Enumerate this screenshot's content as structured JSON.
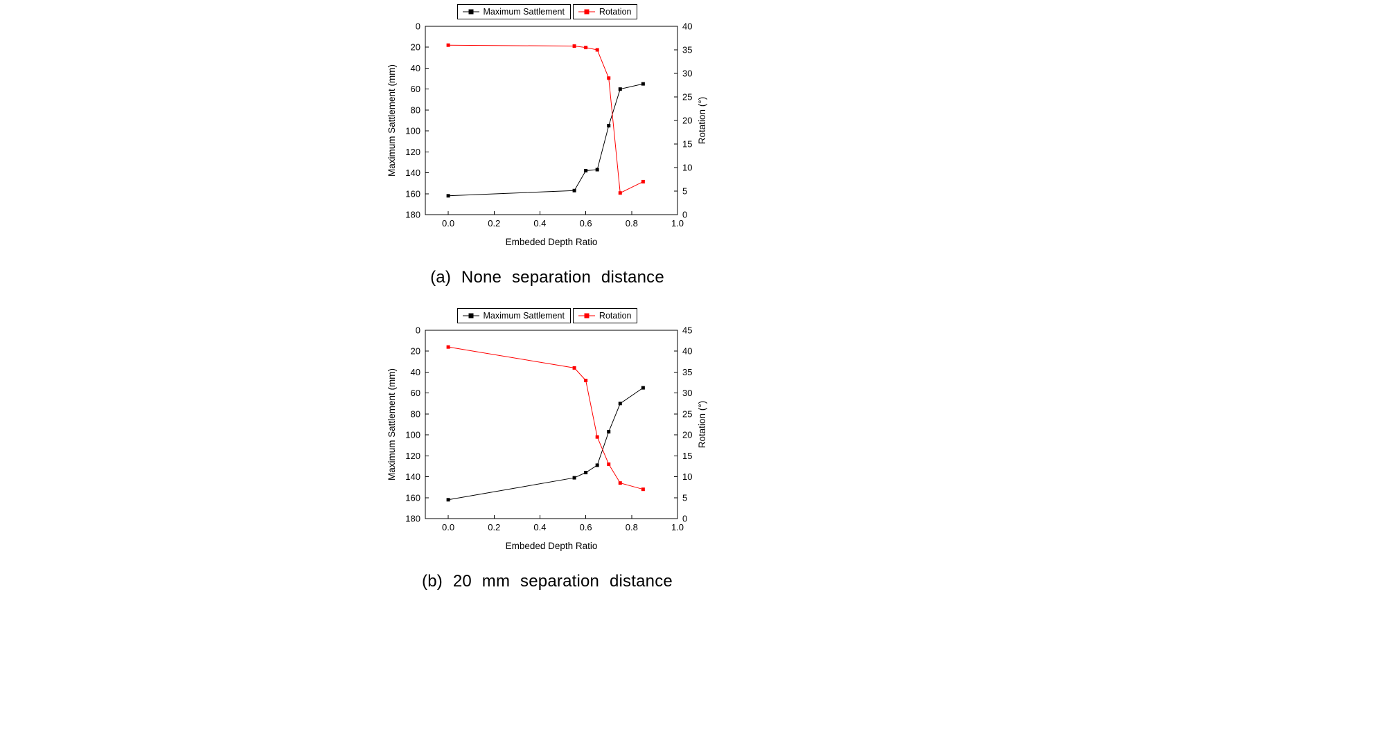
{
  "page": {
    "background": "#ffffff"
  },
  "chart_data": [
    {
      "type": "line",
      "caption": "(a) None separation distance",
      "xlabel": "Embeded Depth Ratio",
      "ylabel_left": "Maximum Sattlement (mm)",
      "ylabel_right": "Rotation (°)",
      "xlim": [
        -0.1,
        1.0
      ],
      "xticks": [
        "0.0",
        "0.2",
        "0.4",
        "0.6",
        "0.8",
        "1.0"
      ],
      "left_axis": {
        "min": 0,
        "max": 180,
        "step": 20,
        "inverted": true
      },
      "right_axis": {
        "min": 0,
        "max": 40,
        "step": 5
      },
      "legend_position": "top",
      "grid": false,
      "series": [
        {
          "name": "Maximum Sattlement",
          "axis": "left",
          "color": "#000000",
          "x": [
            0.0,
            0.55,
            0.6,
            0.65,
            0.7,
            0.75,
            0.85
          ],
          "y": [
            162,
            157,
            138,
            137,
            95,
            60,
            55
          ]
        },
        {
          "name": "Rotation",
          "axis": "right",
          "color": "#ff0000",
          "x": [
            0.0,
            0.55,
            0.6,
            0.65,
            0.7,
            0.75,
            0.85
          ],
          "y": [
            36,
            35.8,
            35.5,
            35,
            29,
            4.6,
            7
          ]
        }
      ]
    },
    {
      "type": "line",
      "caption": "(b) 20 mm separation distance",
      "xlabel": "Embeded Depth Ratio",
      "ylabel_left": "Maximum Sattlement (mm)",
      "ylabel_right": "Rotation (°)",
      "xlim": [
        -0.1,
        1.0
      ],
      "xticks": [
        "0.0",
        "0.2",
        "0.4",
        "0.6",
        "0.8",
        "1.0"
      ],
      "left_axis": {
        "min": 0,
        "max": 180,
        "step": 20,
        "inverted": true
      },
      "right_axis": {
        "min": 0,
        "max": 45,
        "step": 5
      },
      "legend_position": "top",
      "grid": false,
      "series": [
        {
          "name": "Maximum Sattlement",
          "axis": "left",
          "color": "#000000",
          "x": [
            0.0,
            0.55,
            0.6,
            0.65,
            0.7,
            0.75,
            0.85
          ],
          "y": [
            162,
            141,
            136,
            129,
            97,
            70,
            55
          ]
        },
        {
          "name": "Rotation",
          "axis": "right",
          "color": "#ff0000",
          "x": [
            0.0,
            0.55,
            0.6,
            0.65,
            0.7,
            0.75,
            0.85
          ],
          "y": [
            41,
            36,
            33,
            19.5,
            13,
            8.5,
            7
          ]
        }
      ]
    }
  ]
}
